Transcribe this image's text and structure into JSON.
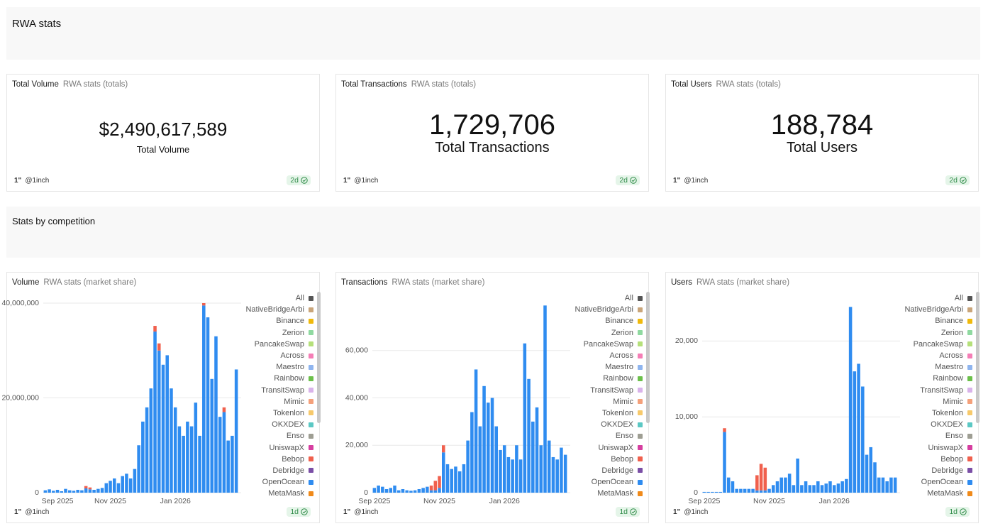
{
  "header": {
    "title": "RWA stats"
  },
  "counters": [
    {
      "title": "Total Volume",
      "source": "RWA stats (totals)",
      "value": "$2,490,617,589",
      "label": "Total Volume",
      "footer": {
        "logo": "1\"",
        "handle": "@1inch",
        "freshness": "2d"
      }
    },
    {
      "title": "Total Transactions",
      "source": "RWA stats (totals)",
      "value": "1,729,706",
      "label": "Total Transactions",
      "footer": {
        "logo": "1\"",
        "handle": "@1inch",
        "freshness": "2d"
      }
    },
    {
      "title": "Total Users",
      "source": "RWA stats (totals)",
      "value": "188,784",
      "label": "Total Users",
      "footer": {
        "logo": "1\"",
        "handle": "@1inch",
        "freshness": "2d"
      }
    }
  ],
  "section": {
    "title": "Stats by competition"
  },
  "chart_data": [
    {
      "type": "bar",
      "stacked": true,
      "grid": true,
      "title": "Volume",
      "subtitle": "RWA stats (market share)",
      "categories": [
        null,
        null,
        null,
        "Sep 2025",
        null,
        null,
        null,
        null,
        null,
        null,
        null,
        null,
        null,
        null,
        null,
        null,
        "Nov 2025",
        null,
        null,
        null,
        null,
        null,
        null,
        null,
        null,
        null,
        null,
        null,
        null,
        null,
        null,
        null,
        "Jan 2026",
        null,
        null,
        null,
        null,
        null,
        null,
        null,
        null,
        null,
        null,
        null,
        null,
        null,
        null,
        null
      ],
      "ylim": [
        0,
        40000000
      ],
      "yticks": [
        0,
        {
          "value": 20000000,
          "label": "20,000,000"
        },
        {
          "value": 40000000,
          "label": "40,000,000"
        }
      ],
      "series": [
        {
          "name": "All",
          "color": "#555555"
        },
        {
          "name": "NativeBridgeArbi",
          "color": "#c9a57a"
        },
        {
          "name": "Binance",
          "color": "#f0b90b"
        },
        {
          "name": "Zerion",
          "color": "#8fd9a0"
        },
        {
          "name": "PancakeSwap",
          "color": "#b5e07a"
        },
        {
          "name": "Across",
          "color": "#f57eb6"
        },
        {
          "name": "Maestro",
          "color": "#8fb5ef"
        },
        {
          "name": "Rainbow",
          "color": "#6cc04a"
        },
        {
          "name": "TransitSwap",
          "color": "#d9b3ea"
        },
        {
          "name": "Mimic",
          "color": "#f4a07a"
        },
        {
          "name": "Tokenlon",
          "color": "#f7c96b"
        },
        {
          "name": "OKXDEX",
          "color": "#5cc8c4"
        },
        {
          "name": "Enso",
          "color": "#9e9e93"
        },
        {
          "name": "UniswapX",
          "color": "#d63ea0"
        },
        {
          "name": "Bebop",
          "color": "#f0604d",
          "values": [
            0,
            0,
            0,
            0,
            0,
            0,
            0,
            0,
            0,
            0,
            500000,
            400000,
            0,
            0,
            0,
            0,
            0,
            0,
            0,
            0,
            0,
            0,
            0,
            0,
            0,
            0,
            0,
            1200000,
            1500000,
            0,
            0,
            0,
            0,
            0,
            0,
            0,
            0,
            0,
            0,
            500000,
            0,
            0,
            0,
            0,
            1000000,
            0,
            0,
            0
          ]
        },
        {
          "name": "Debridge",
          "color": "#7b4fa6"
        },
        {
          "name": "OpenOcean",
          "color": "#2f8cf0",
          "values": [
            500000,
            700000,
            400000,
            600000,
            300000,
            800000,
            500000,
            400000,
            600000,
            500000,
            900000,
            700000,
            600000,
            800000,
            1000000,
            2000000,
            2500000,
            3000000,
            2000000,
            3500000,
            4000000,
            3000000,
            5000000,
            10000000,
            15000000,
            18000000,
            22000000,
            34000000,
            30000000,
            27000000,
            29000000,
            22000000,
            18000000,
            14000000,
            12000000,
            15000000,
            14000000,
            19000000,
            12000000,
            39500000,
            37000000,
            24000000,
            33000000,
            16000000,
            17000000,
            11000000,
            12000000,
            26000000
          ]
        },
        {
          "name": "MetaMask",
          "color": "#f08a1a"
        }
      ],
      "footer": {
        "logo": "1\"",
        "handle": "@1inch",
        "freshness": "1d"
      }
    },
    {
      "type": "bar",
      "stacked": true,
      "grid": true,
      "title": "Transactions",
      "subtitle": "RWA stats (market share)",
      "categories": [
        "Sep 2025",
        null,
        null,
        null,
        null,
        null,
        null,
        null,
        null,
        null,
        null,
        null,
        null,
        null,
        null,
        null,
        "Nov 2025",
        null,
        null,
        null,
        null,
        null,
        null,
        null,
        null,
        null,
        null,
        null,
        null,
        null,
        null,
        null,
        "Jan 2026",
        null,
        null,
        null,
        null,
        null,
        null,
        null,
        null,
        null,
        null,
        null,
        null,
        null,
        null,
        null
      ],
      "ylim": [
        0,
        80000
      ],
      "yticks": [
        0,
        {
          "value": 20000,
          "label": "20,000"
        },
        {
          "value": 40000,
          "label": "40,000"
        },
        {
          "value": 60000,
          "label": "60,000"
        }
      ],
      "series": [
        {
          "name": "All",
          "color": "#555555"
        },
        {
          "name": "NativeBridgeArbi",
          "color": "#c9a57a"
        },
        {
          "name": "Binance",
          "color": "#f0b90b"
        },
        {
          "name": "Zerion",
          "color": "#8fd9a0"
        },
        {
          "name": "PancakeSwap",
          "color": "#b5e07a"
        },
        {
          "name": "Across",
          "color": "#f57eb6"
        },
        {
          "name": "Maestro",
          "color": "#8fb5ef"
        },
        {
          "name": "Rainbow",
          "color": "#6cc04a"
        },
        {
          "name": "TransitSwap",
          "color": "#d9b3ea"
        },
        {
          "name": "Mimic",
          "color": "#f4a07a"
        },
        {
          "name": "Tokenlon",
          "color": "#f7c96b"
        },
        {
          "name": "OKXDEX",
          "color": "#5cc8c4"
        },
        {
          "name": "Enso",
          "color": "#9e9e93"
        },
        {
          "name": "UniswapX",
          "color": "#d63ea0"
        },
        {
          "name": "Bebop",
          "color": "#f0604d",
          "values": [
            0,
            0,
            0,
            0,
            0,
            0,
            0,
            0,
            0,
            0,
            0,
            0,
            0,
            0,
            2000,
            4000,
            5000,
            3000,
            0,
            0,
            0,
            0,
            0,
            0,
            0,
            0,
            0,
            0,
            0,
            0,
            0,
            0,
            0,
            0,
            0,
            0,
            0,
            0,
            0,
            0,
            0,
            0,
            0,
            0,
            0,
            0,
            0,
            0
          ]
        },
        {
          "name": "Debridge",
          "color": "#7b4fa6"
        },
        {
          "name": "OpenOcean",
          "color": "#2f8cf0",
          "values": [
            2000,
            3000,
            2500,
            1500,
            2000,
            3000,
            1000,
            1500,
            1000,
            800,
            1000,
            1500,
            2000,
            2500,
            1000,
            1000,
            2000,
            17000,
            12000,
            10000,
            11000,
            9000,
            12000,
            22000,
            34000,
            52000,
            28000,
            45000,
            38000,
            40000,
            28000,
            18000,
            20000,
            15000,
            14000,
            20000,
            14000,
            63000,
            48000,
            30000,
            36000,
            20000,
            79000,
            22000,
            15000,
            14000,
            19000,
            16000
          ]
        },
        {
          "name": "MetaMask",
          "color": "#f08a1a"
        }
      ],
      "footer": {
        "logo": "1\"",
        "handle": "@1inch",
        "freshness": "1d"
      }
    },
    {
      "type": "bar",
      "stacked": true,
      "grid": true,
      "title": "Users",
      "subtitle": "RWA stats (market share)",
      "categories": [
        "Sep 2025",
        null,
        null,
        null,
        null,
        null,
        null,
        null,
        null,
        null,
        null,
        null,
        null,
        null,
        null,
        null,
        "Nov 2025",
        null,
        null,
        null,
        null,
        null,
        null,
        null,
        null,
        null,
        null,
        null,
        null,
        null,
        null,
        null,
        "Jan 2026",
        null,
        null,
        null,
        null,
        null,
        null,
        null,
        null,
        null,
        null,
        null,
        null,
        null,
        null,
        null
      ],
      "ylim": [
        0,
        25000
      ],
      "yticks": [
        0,
        {
          "value": 10000,
          "label": "10,000"
        },
        {
          "value": 20000,
          "label": "20,000"
        }
      ],
      "series": [
        {
          "name": "All",
          "color": "#555555"
        },
        {
          "name": "NativeBridgeArbi",
          "color": "#c9a57a"
        },
        {
          "name": "Binance",
          "color": "#f0b90b"
        },
        {
          "name": "Zerion",
          "color": "#8fd9a0"
        },
        {
          "name": "PancakeSwap",
          "color": "#b5e07a"
        },
        {
          "name": "Across",
          "color": "#f57eb6"
        },
        {
          "name": "Maestro",
          "color": "#8fb5ef"
        },
        {
          "name": "Rainbow",
          "color": "#6cc04a"
        },
        {
          "name": "TransitSwap",
          "color": "#d9b3ea"
        },
        {
          "name": "Mimic",
          "color": "#f4a07a"
        },
        {
          "name": "Tokenlon",
          "color": "#f7c96b"
        },
        {
          "name": "OKXDEX",
          "color": "#5cc8c4"
        },
        {
          "name": "Enso",
          "color": "#9e9e93"
        },
        {
          "name": "UniswapX",
          "color": "#d63ea0"
        },
        {
          "name": "Bebop",
          "color": "#f0604d",
          "values": [
            0,
            0,
            0,
            0,
            0,
            500,
            0,
            0,
            0,
            0,
            0,
            0,
            0,
            2000,
            3500,
            3000,
            0,
            0,
            0,
            0,
            0,
            0,
            0,
            0,
            0,
            0,
            0,
            0,
            0,
            0,
            0,
            0,
            0,
            0,
            0,
            0,
            0,
            0,
            0,
            0,
            0,
            0,
            0,
            0,
            0,
            0,
            0,
            0
          ]
        },
        {
          "name": "Debridge",
          "color": "#7b4fa6"
        },
        {
          "name": "OpenOcean",
          "color": "#2f8cf0",
          "values": [
            100,
            100,
            100,
            100,
            100,
            8000,
            2000,
            1500,
            500,
            500,
            500,
            500,
            500,
            300,
            300,
            300,
            500,
            1000,
            1500,
            2000,
            2000,
            2500,
            1000,
            4500,
            1000,
            1500,
            1000,
            1000,
            1500,
            1000,
            1200,
            1500,
            1000,
            1200,
            1500,
            1800,
            24500,
            16000,
            17000,
            14000,
            5000,
            6000,
            4000,
            2000,
            2000,
            1500,
            2000,
            2000
          ]
        },
        {
          "name": "MetaMask",
          "color": "#f08a1a"
        }
      ],
      "footer": {
        "logo": "1\"",
        "handle": "@1inch",
        "freshness": "1d"
      }
    }
  ]
}
